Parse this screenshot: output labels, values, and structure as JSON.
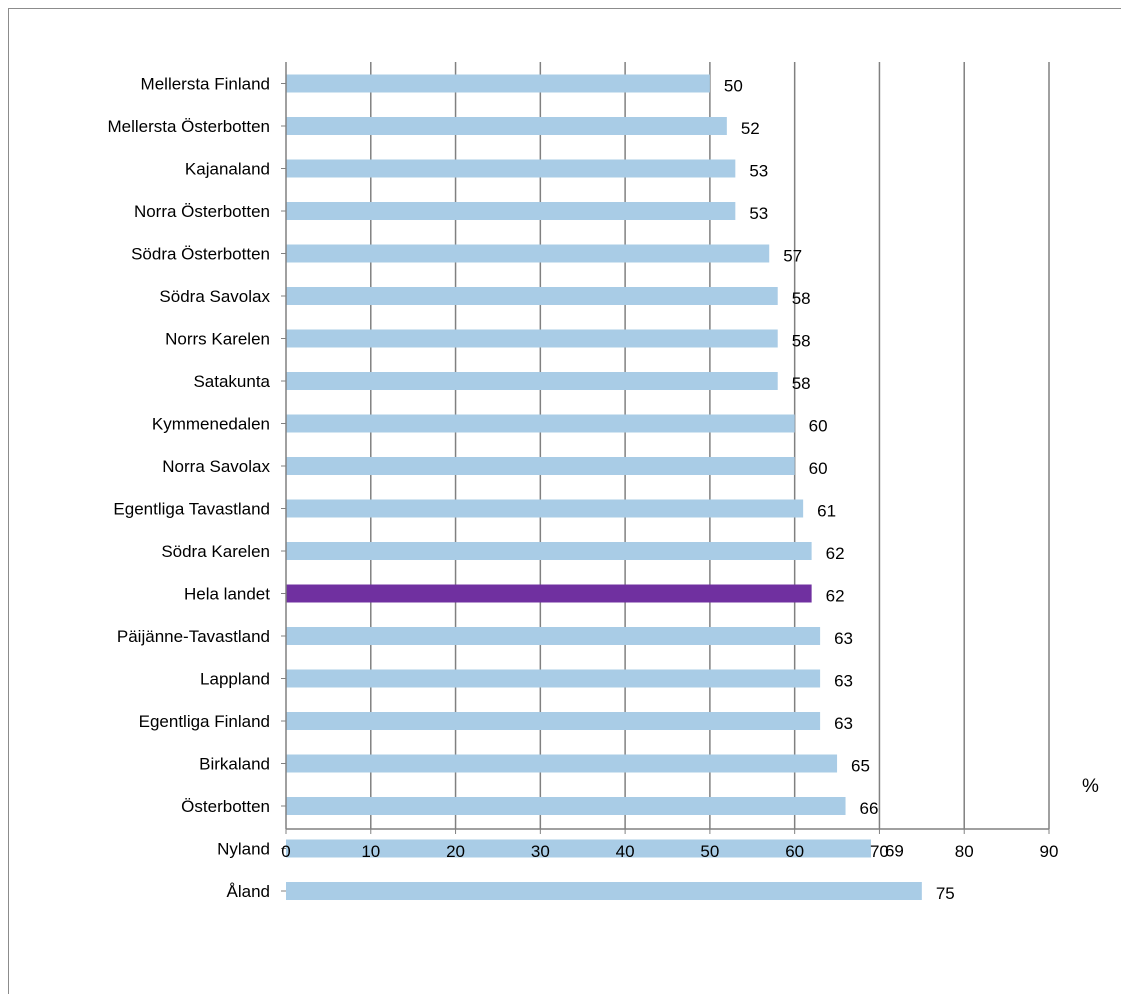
{
  "chart_data": {
    "type": "bar",
    "orientation": "horizontal",
    "categories": [
      "Mellersta Finland",
      "Mellersta Österbotten",
      "Kajanaland",
      "Norra Österbotten",
      "Södra Österbotten",
      "Södra Savolax",
      "Norrs Karelen",
      "Satakunta",
      "Kymmenedalen",
      "Norra Savolax",
      "Egentliga Tavastland",
      "Södra Karelen",
      "Hela landet",
      "Päijänne-Tavastland",
      "Lappland",
      "Egentliga Finland",
      "Birkaland",
      "Österbotten",
      "Nyland",
      "Åland"
    ],
    "values": [
      50,
      52,
      53,
      53,
      57,
      58,
      58,
      58,
      60,
      60,
      61,
      62,
      62,
      63,
      63,
      63,
      65,
      66,
      69,
      75
    ],
    "value_labels": [
      "50",
      "52",
      "53",
      "53",
      "57",
      "58",
      "58",
      "58",
      "60",
      "60",
      "61",
      "62",
      "62",
      "63",
      "63",
      "63",
      "65",
      "66",
      "69",
      "75"
    ],
    "highlight_category": "Hela landet",
    "xlim": [
      0,
      90
    ],
    "xticks": [
      "0",
      "10",
      "20",
      "30",
      "40",
      "50",
      "60",
      "70",
      "80",
      "90"
    ],
    "xunit": "%",
    "grid": true,
    "legend": "none",
    "colors": {
      "bar": "#a9cce6",
      "highlight": "#7030a0",
      "grid": "#808080"
    }
  }
}
